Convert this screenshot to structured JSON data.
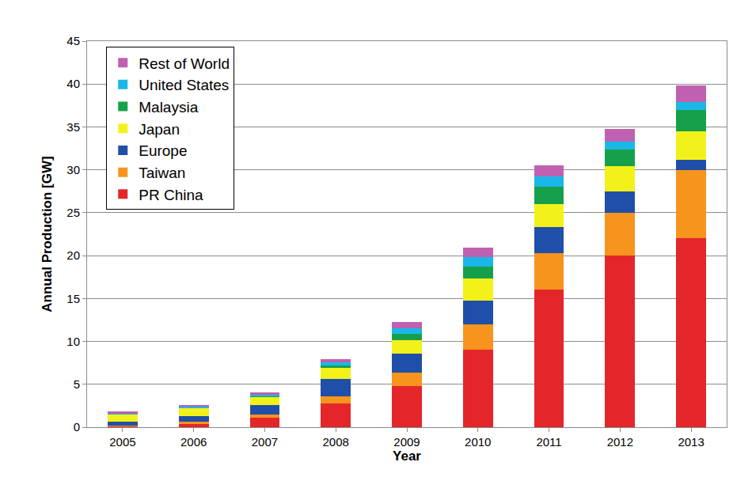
{
  "chart_data": {
    "type": "bar",
    "stacked": true,
    "x_label": "Year",
    "y_label": "Annual Production [GW]",
    "categories": [
      "2005",
      "2006",
      "2007",
      "2008",
      "2009",
      "2010",
      "2011",
      "2012",
      "2013"
    ],
    "series": [
      {
        "name": "PR China",
        "color": "#e4262a",
        "values": [
          0.1,
          0.4,
          1.1,
          2.8,
          4.8,
          9.0,
          16.0,
          20.0,
          22.0
        ]
      },
      {
        "name": "Taiwan",
        "color": "#f7941d",
        "values": [
          0.1,
          0.2,
          0.4,
          0.8,
          1.6,
          3.0,
          4.3,
          5.0,
          8.0
        ]
      },
      {
        "name": "Europe",
        "color": "#1f4fa8",
        "values": [
          0.45,
          0.7,
          1.1,
          2.0,
          2.2,
          2.8,
          3.0,
          2.5,
          1.2
        ]
      },
      {
        "name": "Japan",
        "color": "#f2f21a",
        "values": [
          0.85,
          0.9,
          0.9,
          1.3,
          1.5,
          2.5,
          2.7,
          2.9,
          3.3
        ]
      },
      {
        "name": "Malaysia",
        "color": "#16a04b",
        "values": [
          0.0,
          0.05,
          0.1,
          0.3,
          0.8,
          1.4,
          2.0,
          2.0,
          2.5
        ]
      },
      {
        "name": "United States",
        "color": "#1ab8e8",
        "values": [
          0.1,
          0.15,
          0.2,
          0.4,
          0.6,
          1.1,
          1.2,
          0.9,
          0.9
        ]
      },
      {
        "name": "Rest of World",
        "color": "#c060b0",
        "values": [
          0.2,
          0.2,
          0.3,
          0.3,
          0.8,
          1.1,
          1.3,
          1.5,
          1.9
        ]
      }
    ],
    "ylim": [
      0,
      45
    ],
    "yticks": [
      0,
      5,
      10,
      15,
      20,
      25,
      30,
      35,
      40,
      45
    ],
    "grid": true,
    "legend": "upper left"
  }
}
